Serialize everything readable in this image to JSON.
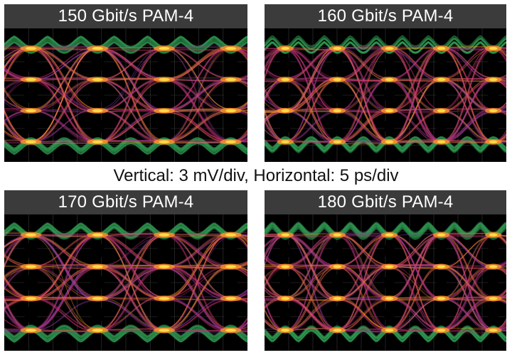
{
  "panels": [
    {
      "title": "150 Gbit/s PAM-4",
      "eye_count": 4
    },
    {
      "title": "160 Gbit/s PAM-4",
      "eye_count": 5
    },
    {
      "title": "170 Gbit/s PAM-4",
      "eye_count": 4
    },
    {
      "title": "180 Gbit/s PAM-4",
      "eye_count": 5
    }
  ],
  "caption": "Vertical: 3 mV/div, Horizontal: 5 ps/div",
  "colors": {
    "background": "#000000",
    "title_bar": "#3b3b3b",
    "envelope": "#2f9a52",
    "trace_mid": "#c6326e",
    "trace_hot": "#ff9a1f",
    "trace_peak": "#ffe24a",
    "grid": "#3a3a3a"
  }
}
